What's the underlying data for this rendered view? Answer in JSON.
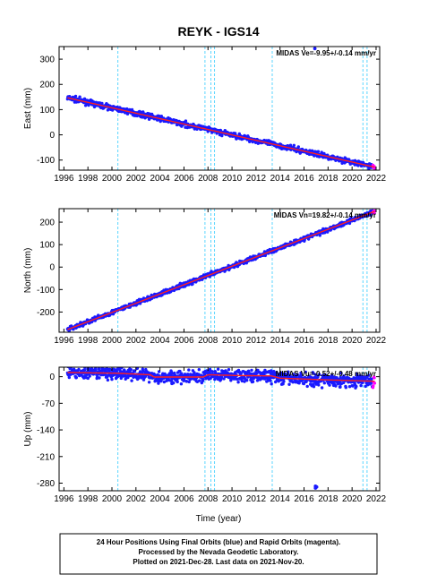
{
  "chart_data": {
    "title": "REYK - IGS14",
    "xlabel": "Time (year)",
    "x_ticks": [
      1996,
      1998,
      2000,
      2002,
      2004,
      2006,
      2008,
      2010,
      2012,
      2014,
      2016,
      2018,
      2020,
      2022
    ],
    "xlim": [
      1995.6,
      2022.3
    ],
    "equipment_change_years": [
      2000.5,
      2007.75,
      2008.25,
      2008.55,
      2013.35,
      2020.9,
      2021.25
    ],
    "colors": {
      "final": "#1a1aff",
      "rapid": "#ff00ff",
      "fit": "#ff2020",
      "events": "#33ccff"
    },
    "panels": [
      {
        "type": "scatter",
        "ylabel": "East (mm)",
        "y_ticks": [
          -100,
          0,
          100,
          200,
          300
        ],
        "ylim": [
          -140,
          350
        ],
        "midas": "MIDAS Ve=-9.95+/-0.14 mm/yr",
        "series": {
          "start_year": 1996.3,
          "start_value": 147,
          "end_year": 2021.88,
          "end_value": -128,
          "scatter_mm": 5,
          "outliers": [
            [
              2016.9,
              342
            ]
          ]
        }
      },
      {
        "type": "scatter",
        "ylabel": "North (mm)",
        "y_ticks": [
          -200,
          -100,
          0,
          100,
          200
        ],
        "ylim": [
          -290,
          260
        ],
        "midas": "MIDAS Vn=19.82+/-0.14 mm/yr",
        "series": {
          "start_year": 1996.3,
          "start_value": -278,
          "end_year": 2021.88,
          "end_value": 248,
          "scatter_mm": 5,
          "outliers": []
        }
      },
      {
        "type": "scatter",
        "ylabel": "Up (mm)",
        "y_ticks": [
          -280,
          -210,
          -140,
          -70,
          0
        ],
        "ylim": [
          -300,
          25
        ],
        "midas": "MIDAS Vu=-0.52+/-0.48 mm/yr",
        "series": {
          "trend": [
            [
              1996.3,
              11
            ],
            [
              2000.5,
              9
            ],
            [
              2003.2,
              5
            ],
            [
              2003.5,
              -1
            ],
            [
              2007.6,
              -1
            ],
            [
              2008.0,
              5
            ],
            [
              2010.5,
              3
            ],
            [
              2013.3,
              2
            ],
            [
              2014.0,
              -4
            ],
            [
              2017.5,
              -8
            ],
            [
              2021.88,
              -12
            ]
          ],
          "scatter_mm": 8,
          "outliers": [
            [
              2016.95,
              -288
            ],
            [
              2016.95,
              -293
            ],
            [
              2017.05,
              -290
            ],
            [
              2002.1,
              22
            ],
            [
              2005.0,
              -18
            ],
            [
              2019.0,
              -27
            ]
          ]
        }
      }
    ]
  },
  "footer": {
    "line1": "24 Hour Positions Using Final Orbits (blue) and Rapid Orbits (magenta).",
    "line2": "Processed by the Nevada Geodetic Laboratory.",
    "line3": "Plotted on 2021-Dec-28. Last data on 2021-Nov-20."
  }
}
